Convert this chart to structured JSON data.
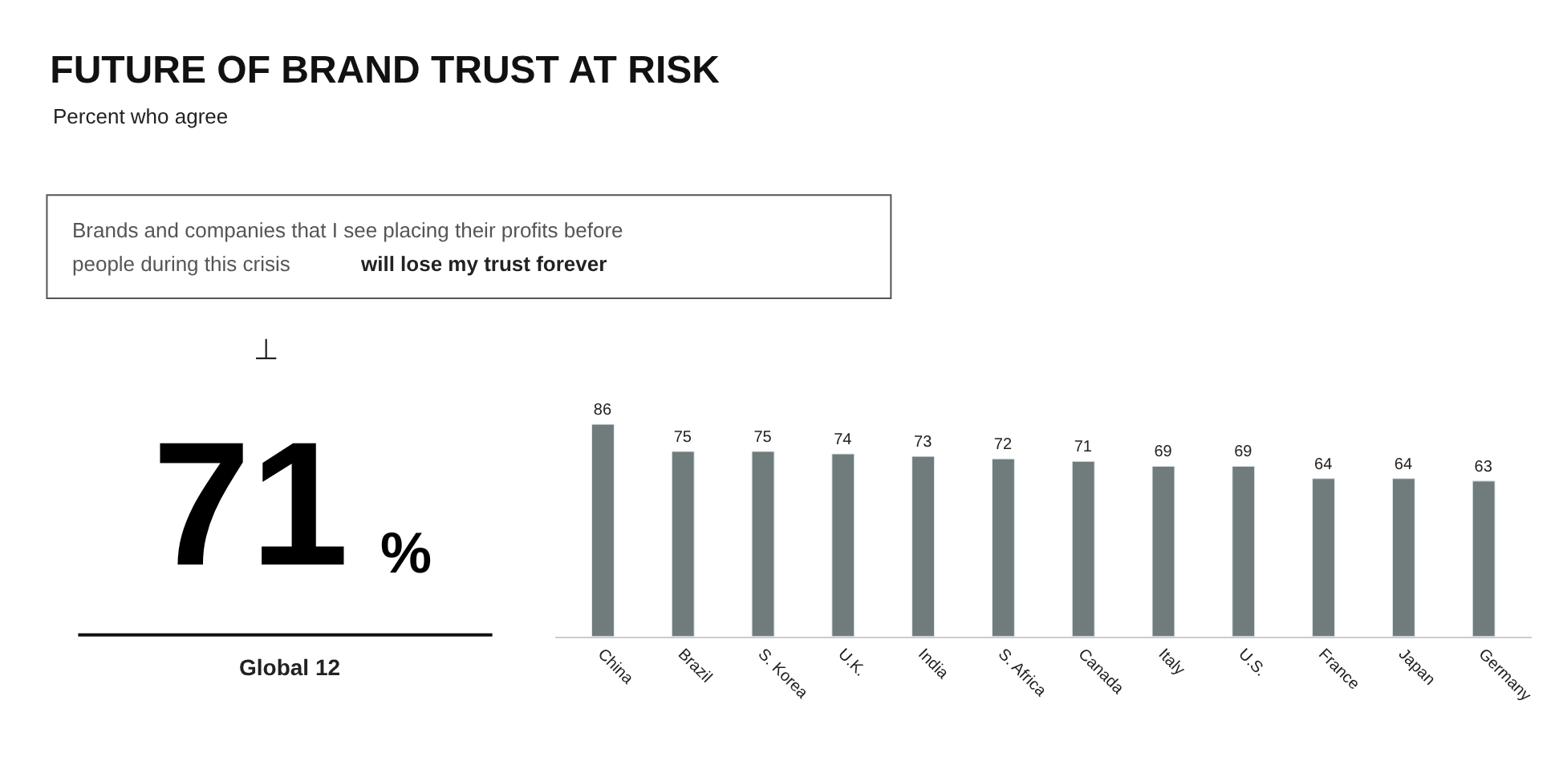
{
  "chart_data": {
    "type": "bar",
    "title": "FUTURE OF BRAND TRUST AT RISK",
    "subtitle": "Percent who agree",
    "annotations": [
      "Brands and companies that I see placing their profits before",
      "people during this crisis",
      "will lose my trust forever",
      "⊥",
      "71",
      "%",
      "Global 12"
    ],
    "categories": [
      "China",
      "Brazil",
      "S. Korea",
      "U.K.",
      "India",
      "S. Africa",
      "Canada",
      "Italy",
      "U.S.",
      "France",
      "Japan",
      "Germany"
    ],
    "values": [
      86,
      75,
      75,
      74,
      73,
      72,
      71,
      69,
      69,
      64,
      64,
      63
    ],
    "color": "#6f7c7b",
    "data_labels": true,
    "tick_labels": "x",
    "legend": false
  }
}
